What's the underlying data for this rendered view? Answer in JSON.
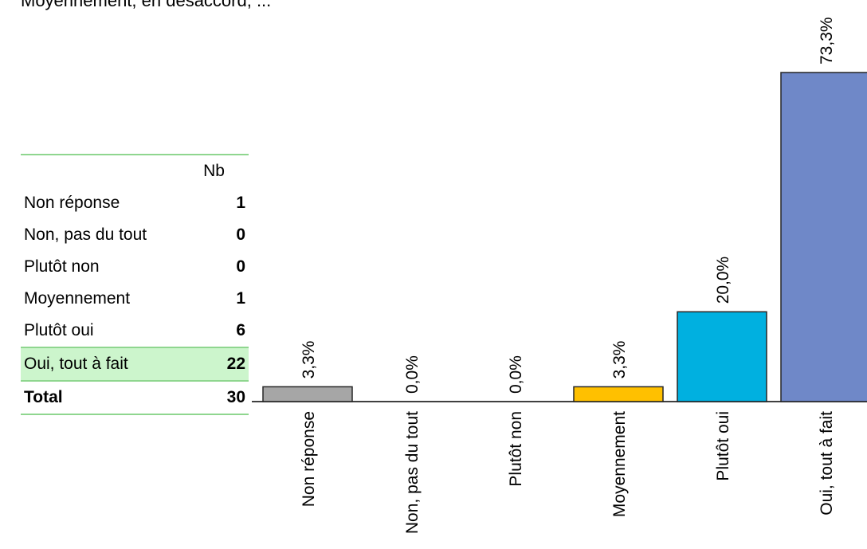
{
  "header_text": "Moyennement, en désaccord, ...",
  "table": {
    "header": {
      "label": "",
      "value": "Nb"
    },
    "rows": [
      {
        "label": "Non réponse",
        "value": "1"
      },
      {
        "label": "Non, pas du tout",
        "value": "0"
      },
      {
        "label": "Plutôt non",
        "value": "0"
      },
      {
        "label": "Moyennement",
        "value": "1"
      },
      {
        "label": "Plutôt oui",
        "value": "6"
      },
      {
        "label": "Oui, tout à fait",
        "value": "22"
      }
    ],
    "total": {
      "label": "Total",
      "value": "30"
    }
  },
  "chart_data": {
    "type": "bar",
    "categories": [
      "Non réponse",
      "Non, pas du tout",
      "Plutôt non",
      "Moyennement",
      "Plutôt oui",
      "Oui, tout à fait"
    ],
    "values": [
      3.3,
      0.0,
      0.0,
      3.3,
      20.0,
      73.3
    ],
    "data_labels": [
      "3,3%",
      "0,0%",
      "0,0%",
      "3,3%",
      "20,0%",
      "73,3%"
    ],
    "colors": [
      "#a6a6a6",
      "#a6a6a6",
      "#a6a6a6",
      "#ffc000",
      "#00b0e0",
      "#6f88c8"
    ],
    "unit": "%",
    "grid": false,
    "legend": "none",
    "ylim": [
      0,
      73.3
    ]
  }
}
